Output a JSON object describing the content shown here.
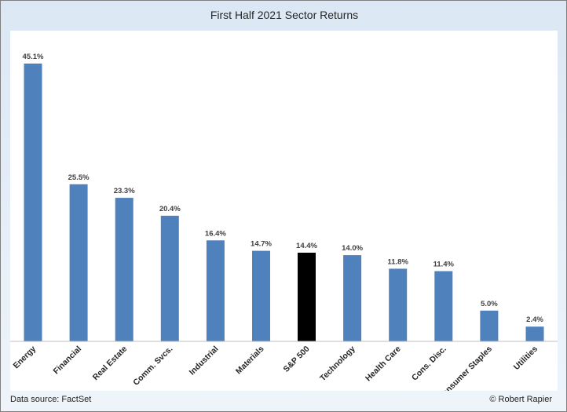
{
  "chart_data": {
    "type": "bar",
    "title": "First Half 2021 Sector Returns",
    "categories": [
      "Energy",
      "Financial",
      "Real Estate",
      "Comm. Svcs.",
      "Industrial",
      "Materials",
      "S&P 500",
      "Technology",
      "Health Care",
      "Cons. Disc.",
      "Consumer Staples",
      "Utilities"
    ],
    "values": [
      45.1,
      25.5,
      23.3,
      20.4,
      16.4,
      14.7,
      14.4,
      14.0,
      11.8,
      11.4,
      5.0,
      2.4
    ],
    "data_labels": [
      "45.1%",
      "25.5%",
      "23.3%",
      "20.4%",
      "16.4%",
      "14.7%",
      "14.4%",
      "14.0%",
      "11.8%",
      "11.4%",
      "5.0%",
      "2.4%"
    ],
    "xlabel": "",
    "ylabel": "",
    "ylim": [
      0,
      45.1
    ],
    "grid": false,
    "legend": "none",
    "colors": {
      "default_bar": "#4f81bd",
      "highlight_bar": "#000000",
      "highlight_category": "S&P 500"
    }
  },
  "footer": {
    "source": "Data source: FactSet",
    "credit": "© Robert Rapier"
  }
}
